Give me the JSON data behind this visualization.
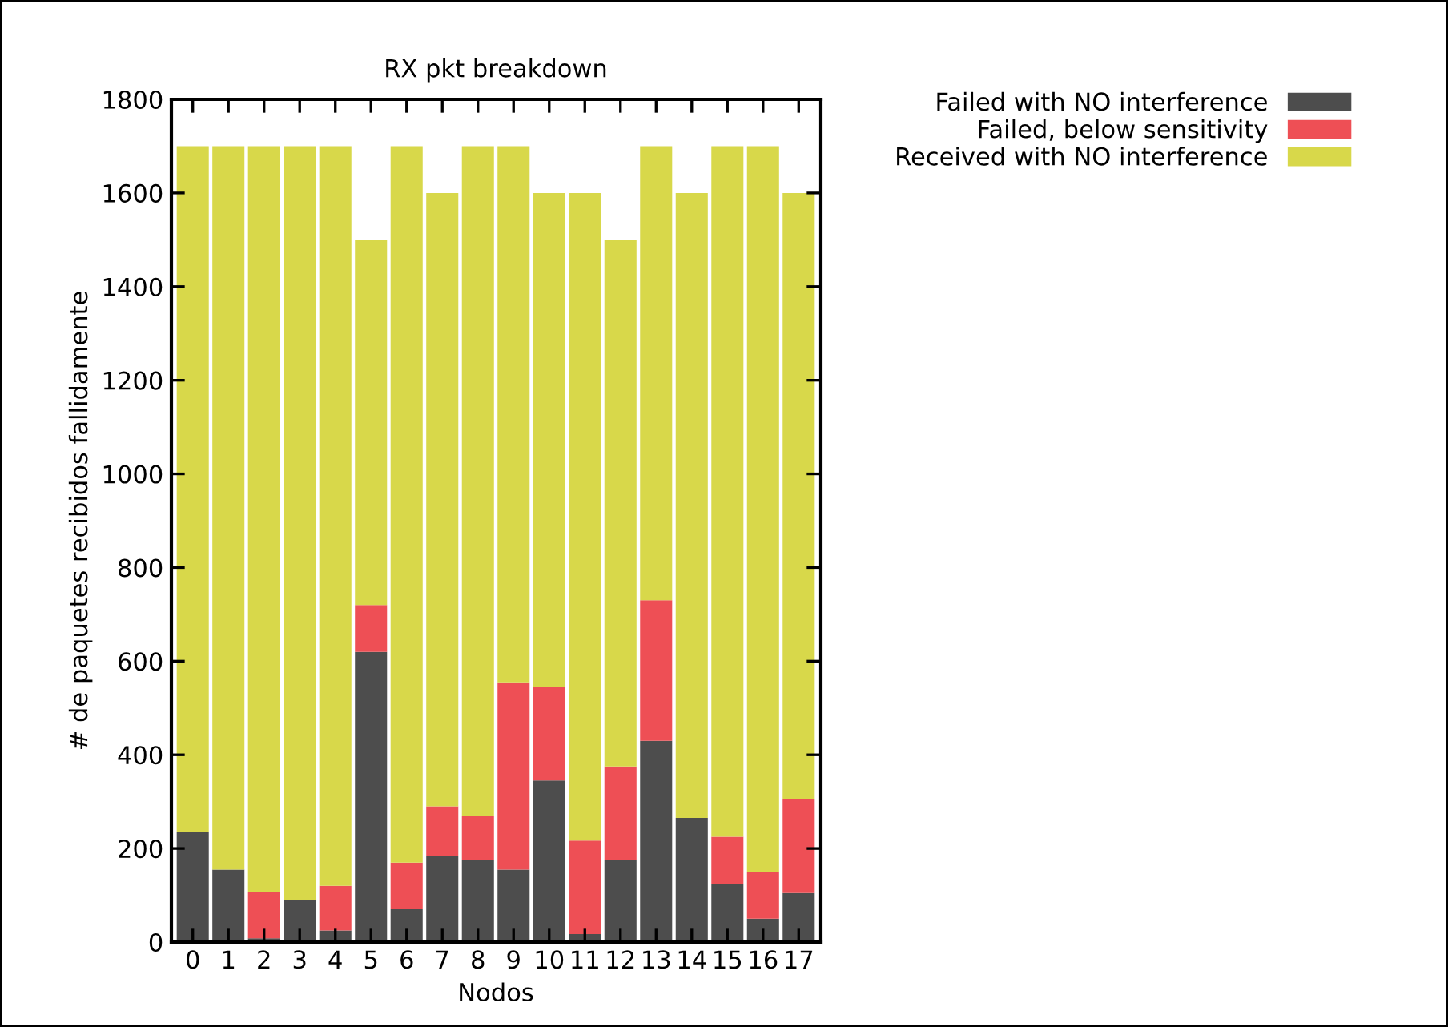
{
  "chart_data": {
    "type": "bar",
    "title": "RX pkt breakdown",
    "xlabel": "Nodos",
    "ylabel": "# de paquetes recibidos fallidamente",
    "categories": [
      "0",
      "1",
      "2",
      "3",
      "4",
      "5",
      "6",
      "7",
      "8",
      "9",
      "10",
      "11",
      "12",
      "13",
      "14",
      "15",
      "16",
      "17"
    ],
    "stacked": true,
    "series": [
      {
        "name": "Failed with NO interference",
        "color": "#4d4d4d",
        "values": [
          235,
          155,
          8,
          90,
          25,
          620,
          70,
          185,
          175,
          155,
          345,
          17,
          175,
          430,
          265,
          125,
          50,
          105
        ]
      },
      {
        "name": "Failed, below sensitivity",
        "color": "#ee4f55",
        "values": [
          0,
          0,
          100,
          0,
          95,
          100,
          100,
          105,
          95,
          400,
          200,
          200,
          200,
          300,
          0,
          100,
          100,
          200
        ]
      },
      {
        "name": "Received with NO interference",
        "color": "#d8d84a",
        "values": [
          1465,
          1545,
          1592,
          1610,
          1580,
          780,
          1530,
          1310,
          1430,
          1145,
          1055,
          1383,
          1125,
          970,
          1335,
          1475,
          1550,
          1295
        ]
      }
    ],
    "ylim": [
      0,
      1800
    ],
    "yticks": [
      0,
      200,
      400,
      600,
      800,
      1000,
      1200,
      1400,
      1600,
      1800
    ],
    "grid": false,
    "legend": "top right"
  }
}
